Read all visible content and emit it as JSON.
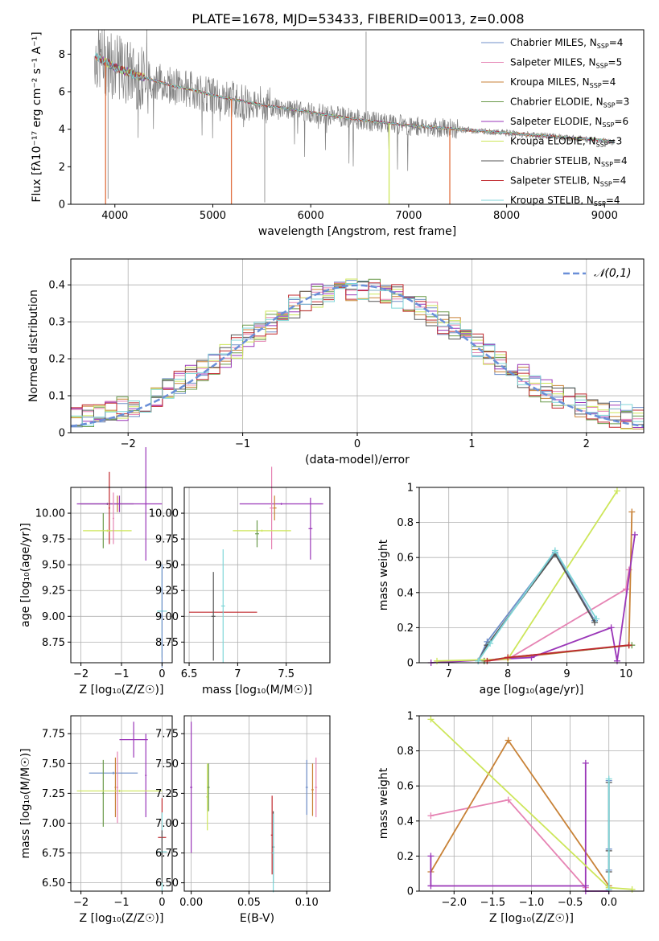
{
  "figure": {
    "title": "PLATE=1678, MJD=53433, FIBERID=0013, z=0.008",
    "colors": {
      "Chabrier MILES": "#6f8fc8",
      "Salpeter MILES": "#e684b4",
      "Kroupa MILES": "#c88237",
      "Chabrier ELODIE": "#6a9a4a",
      "Salpeter ELODIE": "#9a36b8",
      "Kroupa ELODIE": "#cde65a",
      "Chabrier STELIB": "#555555",
      "Salpeter STELIB": "#c0282d",
      "Kroupa STELIB": "#7fd6d8",
      "data": "#808080",
      "model_red": "#e07040",
      "normal": "#6a8fd8"
    }
  },
  "chart_data": [
    {
      "id": "spectrum",
      "type": "line",
      "title": "PLATE=1678, MJD=53433, FIBERID=0013, z=0.008",
      "xlabel": "wavelength [Angstrom, rest frame]",
      "ylabel": "Flux [fλ10⁻¹⁷ erg cm⁻² s⁻¹ A⁻¹]",
      "xlim": [
        3550,
        9400
      ],
      "ylim": [
        0,
        9.3
      ],
      "xticks": [
        4000,
        5000,
        6000,
        7000,
        8000,
        9000
      ],
      "yticks": [
        0,
        2,
        4,
        6,
        8
      ],
      "grid": false,
      "legend_position": "top-right",
      "legend": [
        {
          "name": "Chabrier MILES",
          "nssp": "4"
        },
        {
          "name": "Salpeter MILES",
          "nssp": "5"
        },
        {
          "name": "Kroupa MILES",
          "nssp": "4"
        },
        {
          "name": "Chabrier ELODIE",
          "nssp": "3"
        },
        {
          "name": "Salpeter ELODIE",
          "nssp": "6"
        },
        {
          "name": "Kroupa ELODIE",
          "nssp": "3"
        },
        {
          "name": "Chabrier STELIB",
          "nssp": "4"
        },
        {
          "name": "Salpeter STELIB",
          "nssp": "4"
        },
        {
          "name": "Kroupa STELIB",
          "nssp": "4"
        }
      ],
      "continuum_points": [
        [
          3800,
          7.9
        ],
        [
          3900,
          7.6
        ],
        [
          4000,
          7.3
        ],
        [
          4100,
          7.1
        ],
        [
          4200,
          6.9
        ],
        [
          4400,
          6.6
        ],
        [
          4600,
          6.3
        ],
        [
          4800,
          6.1
        ],
        [
          5000,
          5.8
        ],
        [
          5200,
          5.6
        ],
        [
          5500,
          5.3
        ],
        [
          6000,
          4.9
        ],
        [
          6500,
          4.5
        ],
        [
          7000,
          4.2
        ],
        [
          7500,
          4.0
        ],
        [
          8000,
          3.8
        ],
        [
          8500,
          3.6
        ],
        [
          9000,
          3.4
        ],
        [
          9100,
          3.3
        ]
      ],
      "model_dropouts": [
        [
          3905,
          "Salpeter STELIB"
        ],
        [
          5190,
          "Salpeter STELIB"
        ],
        [
          6800,
          "Kroupa ELODIE"
        ],
        [
          7420,
          "Salpeter STELIB"
        ]
      ]
    },
    {
      "id": "residuals",
      "type": "histogram",
      "xlabel": "(data-model)/error",
      "ylabel": "Normed distribution",
      "xlim": [
        -2.5,
        2.5
      ],
      "ylim": [
        0,
        0.47
      ],
      "xticks": [
        -2,
        -1,
        0,
        1,
        2
      ],
      "yticks": [
        0.0,
        0.1,
        0.2,
        0.3,
        0.4
      ],
      "grid": true,
      "legend_position": "top-right",
      "reference_curve": {
        "name": "𝒩(0,1)",
        "mean": 0,
        "sigma": 1
      },
      "bin_width": 0.1
    },
    {
      "id": "age-vs-Z",
      "type": "errorbar",
      "xlabel": "Z [log₁₀(Z/Z☉)]",
      "ylabel": "age  [log₁₀(age/yr)]",
      "xlim": [
        -2.25,
        0.25
      ],
      "ylim": [
        8.55,
        10.25
      ],
      "xticks": [
        -2,
        -1,
        0
      ],
      "yticks": [
        8.75,
        9.0,
        9.25,
        9.5,
        9.75,
        10.0
      ],
      "ytick_labels": [
        "8.75",
        "9.00",
        "9.25",
        "9.50",
        "9.75",
        "10.00"
      ],
      "grid": true
    },
    {
      "id": "age-vs-mass",
      "type": "errorbar",
      "xlabel": "mass [log₁₀(M/M☉)]",
      "ylabel": "",
      "xlim": [
        6.45,
        7.95
      ],
      "ylim": [
        8.55,
        10.25
      ],
      "xticks": [
        6.5,
        7.0,
        7.5
      ],
      "yticks": [
        8.75,
        9.0,
        9.25,
        9.5,
        9.75,
        10.0
      ],
      "ytick_labels": [
        "8.75",
        "9.00",
        "9.25",
        "9.50",
        "9.75",
        "10.00"
      ],
      "grid": true
    },
    {
      "id": "weight-vs-age",
      "type": "line",
      "xlabel": "age  [log₁₀(age/yr)]",
      "ylabel": "mass weight",
      "xlim": [
        6.5,
        10.3
      ],
      "ylim": [
        0,
        1.0
      ],
      "xticks": [
        7,
        8,
        9,
        10
      ],
      "yticks": [
        0.0,
        0.2,
        0.4,
        0.6,
        0.8,
        1.0
      ],
      "grid": true,
      "series": [
        {
          "name": "Chabrier MILES",
          "x": [
            7.5,
            7.65,
            8.8,
            9.47
          ],
          "y": [
            0.01,
            0.12,
            0.63,
            0.24
          ]
        },
        {
          "name": "Salpeter MILES",
          "x": [
            7.6,
            8.0,
            10.0,
            10.05
          ],
          "y": [
            0.01,
            0.02,
            0.42,
            0.53
          ]
        },
        {
          "name": "Kroupa MILES",
          "x": [
            7.6,
            10.05,
            10.1
          ],
          "y": [
            0.01,
            0.1,
            0.86
          ]
        },
        {
          "name": "Chabrier ELODIE",
          "x": [
            7.6,
            8.0,
            10.1
          ],
          "y": [
            0.01,
            0.03,
            0.1
          ]
        },
        {
          "name": "Salpeter ELODIE",
          "x": [
            6.7,
            8.4,
            9.75,
            9.85,
            10.15
          ],
          "y": [
            0.0,
            0.03,
            0.2,
            0.01,
            0.73
          ]
        },
        {
          "name": "Kroupa ELODIE",
          "x": [
            6.8,
            8.0,
            9.85
          ],
          "y": [
            0.01,
            0.02,
            0.98
          ]
        },
        {
          "name": "Chabrier STELIB",
          "x": [
            7.5,
            7.65,
            8.8,
            9.47
          ],
          "y": [
            0.01,
            0.1,
            0.62,
            0.23
          ]
        },
        {
          "name": "Salpeter STELIB",
          "x": [
            7.65,
            8.0,
            10.05
          ],
          "y": [
            0.01,
            0.03,
            0.1
          ]
        },
        {
          "name": "Kroupa STELIB",
          "x": [
            7.5,
            7.7,
            8.8,
            9.5
          ],
          "y": [
            0.01,
            0.11,
            0.64,
            0.25
          ]
        }
      ]
    },
    {
      "id": "mass-vs-Z",
      "type": "errorbar",
      "xlabel": "Z [log₁₀(Z/Z☉)]",
      "ylabel": "mass [log₁₀(M/M☉)]",
      "xlim": [
        -2.25,
        0.25
      ],
      "ylim": [
        6.43,
        7.9
      ],
      "xticks": [
        -2,
        -1,
        0
      ],
      "yticks": [
        6.5,
        6.75,
        7.0,
        7.25,
        7.5,
        7.75
      ],
      "ytick_labels": [
        "6.50",
        "6.75",
        "7.00",
        "7.25",
        "7.50",
        "7.75"
      ],
      "grid": true
    },
    {
      "id": "mass-vs-EBV",
      "type": "errorbar",
      "xlabel": "E(B-V)",
      "ylabel": "",
      "xlim": [
        -0.006,
        0.12
      ],
      "ylim": [
        6.43,
        7.9
      ],
      "xticks": [
        0.0,
        0.05,
        0.1
      ],
      "xtick_labels": [
        "0.00",
        "0.05",
        "0.10"
      ],
      "yticks": [
        6.5,
        6.75,
        7.0,
        7.25,
        7.5,
        7.75
      ],
      "ytick_labels": [
        "6.50",
        "6.75",
        "7.00",
        "7.25",
        "7.50",
        "7.75"
      ],
      "grid": true
    },
    {
      "id": "weight-vs-Z",
      "type": "line",
      "xlabel": "Z [log₁₀(Z/Z☉)]",
      "ylabel": "mass weight",
      "xlim": [
        -2.45,
        0.45
      ],
      "ylim": [
        0,
        1.0
      ],
      "xticks": [
        -2.0,
        -1.5,
        -1.0,
        -0.5,
        0.0
      ],
      "xtick_labels": [
        "−2.0",
        "−1.5",
        "−1.0",
        "−0.5",
        "0.0"
      ],
      "yticks": [
        0.0,
        0.2,
        0.4,
        0.6,
        0.8,
        1.0
      ],
      "grid": true,
      "series": [
        {
          "name": "Salpeter MILES",
          "x": [
            -2.3,
            -1.3,
            -0.3
          ],
          "y": [
            0.43,
            0.52,
            0.02
          ]
        },
        {
          "name": "Kroupa MILES",
          "x": [
            -2.3,
            -1.3,
            0.0
          ],
          "y": [
            0.11,
            0.86,
            0.03
          ]
        },
        {
          "name": "Salpeter ELODIE",
          "x": [
            -2.3,
            -2.3,
            -0.3,
            -0.3,
            -0.3,
            0.0
          ],
          "y": [
            0.2,
            0.03,
            0.03,
            0.73,
            0.0,
            0.0
          ]
        },
        {
          "name": "Kroupa ELODIE",
          "x": [
            -2.3,
            0.0,
            0.3
          ],
          "y": [
            0.98,
            0.02,
            0.01
          ]
        },
        {
          "name": "Chabrier MILES",
          "x": [
            0.0,
            0.0,
            0.0
          ],
          "y": [
            0.63,
            0.24,
            0.12
          ]
        },
        {
          "name": "Chabrier STELIB",
          "x": [
            0.0,
            0.0,
            0.0
          ],
          "y": [
            0.62,
            0.23,
            0.11
          ]
        },
        {
          "name": "Kroupa STELIB",
          "x": [
            0.0,
            0.0
          ],
          "y": [
            0.64,
            0.01
          ]
        }
      ]
    }
  ]
}
